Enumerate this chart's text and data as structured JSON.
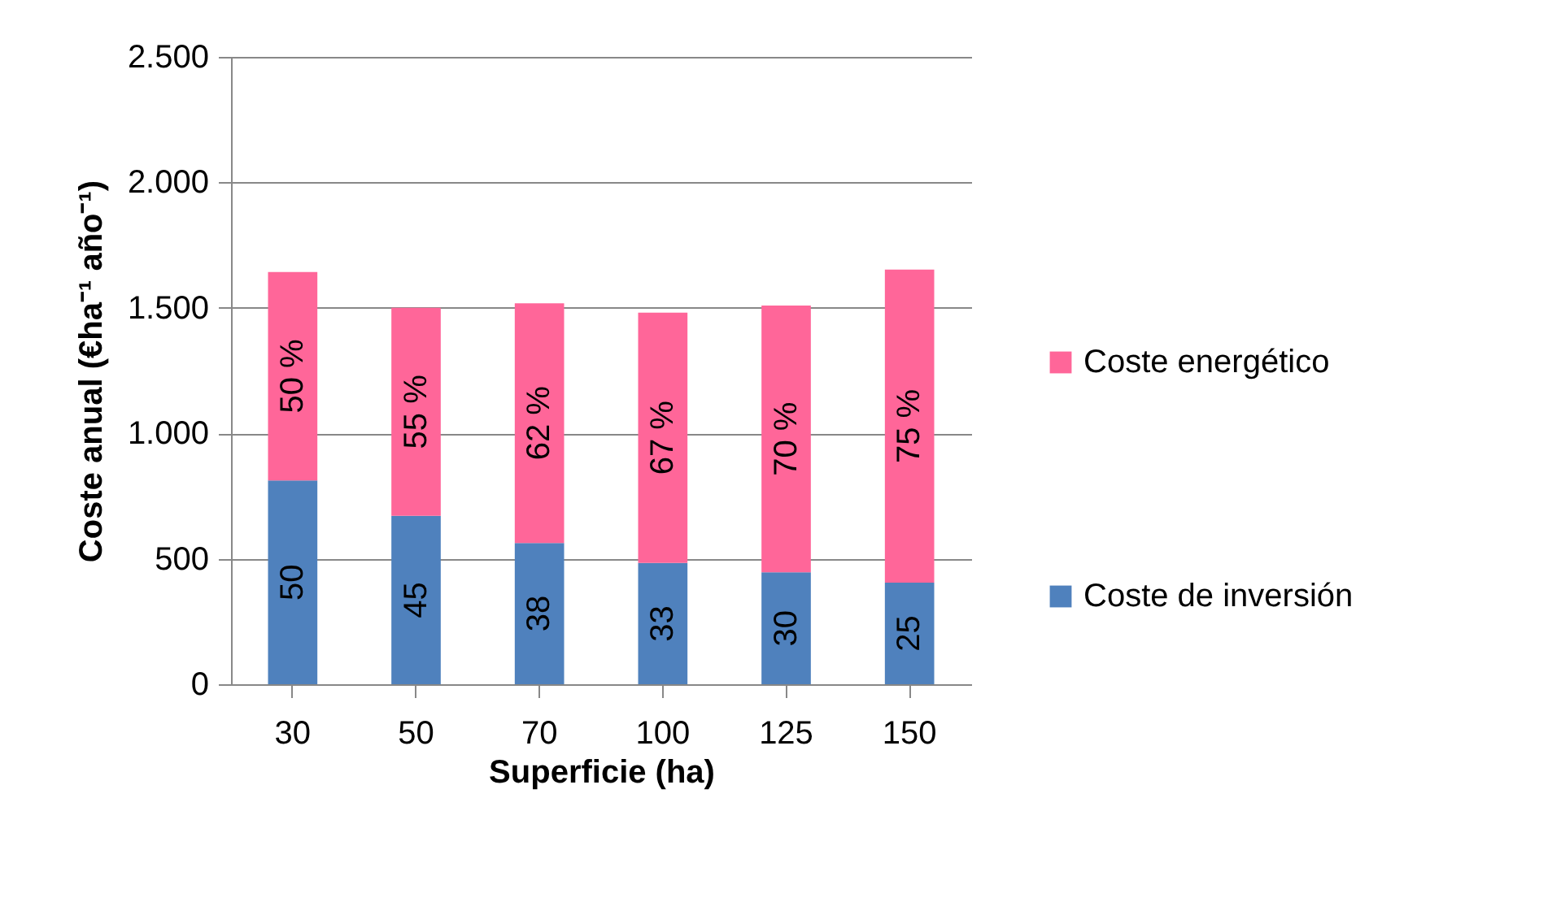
{
  "chart_data": {
    "type": "bar",
    "stacked": true,
    "xlabel": "Superficie (ha)",
    "ylabel": "Coste anual (€ha⁻¹ año⁻¹)",
    "categories": [
      "30",
      "50",
      "70",
      "100",
      "125",
      "150"
    ],
    "series": [
      {
        "name": "Coste de inversión",
        "color": "#4f81bd",
        "values": [
          812,
          671,
          563,
          483,
          446,
          405
        ]
      },
      {
        "name": "Coste energético",
        "color": "#ff6699",
        "values": [
          831,
          829,
          955,
          998,
          1063,
          1247
        ]
      }
    ],
    "annotations": [
      "50",
      "45",
      "38",
      "33",
      "30",
      "25",
      "50 %",
      "55 %",
      "62 %",
      "67 %",
      "70 %",
      "75 %"
    ],
    "ylim": [
      0,
      2500
    ],
    "yticks": [
      0,
      {
        "value": 500,
        "label": "500"
      },
      {
        "value": 1000,
        "label": "1.000"
      },
      {
        "value": 1500,
        "label": "1.500"
      },
      {
        "value": 2000,
        "label": "2.000"
      },
      {
        "value": 2500,
        "label": "2.500"
      }
    ],
    "grid": "y",
    "legend": "right"
  }
}
